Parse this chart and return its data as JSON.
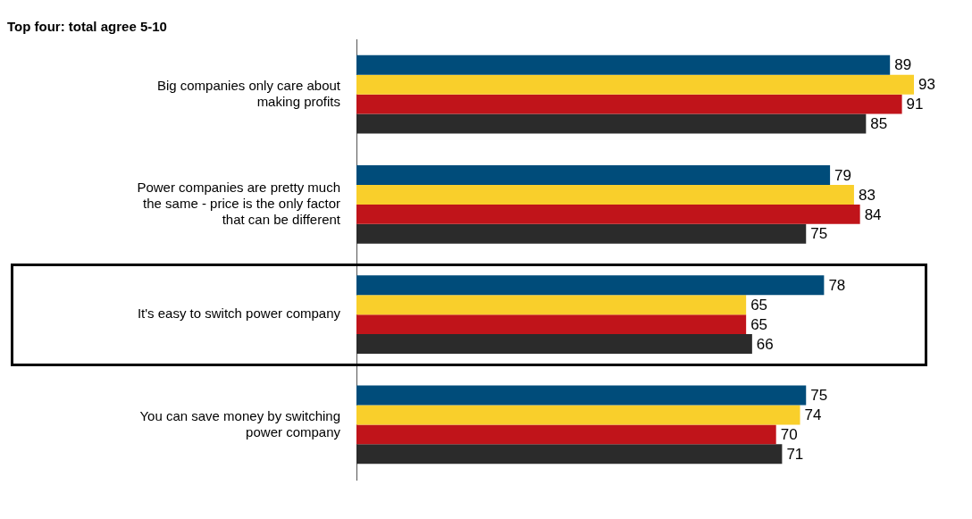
{
  "chart_data": {
    "type": "bar",
    "orientation": "horizontal",
    "title": "Top four: total agree 5-10",
    "categories": [
      "Big companies only care about making profits",
      "Power companies are pretty much the same - price is the only factor that can be different",
      "It's easy to switch power company",
      "You can save money by switching power company"
    ],
    "series": [
      {
        "color": "#004c7a",
        "values": [
          89,
          79,
          78,
          75
        ]
      },
      {
        "color": "#f9cf2b",
        "values": [
          93,
          83,
          65,
          74
        ]
      },
      {
        "color": "#c0141a",
        "values": [
          91,
          84,
          65,
          70
        ]
      },
      {
        "color": "#2b2b2b",
        "values": [
          85,
          75,
          66,
          71
        ]
      }
    ],
    "data_labels": true,
    "legend": false,
    "tick_labels": "y"
  }
}
